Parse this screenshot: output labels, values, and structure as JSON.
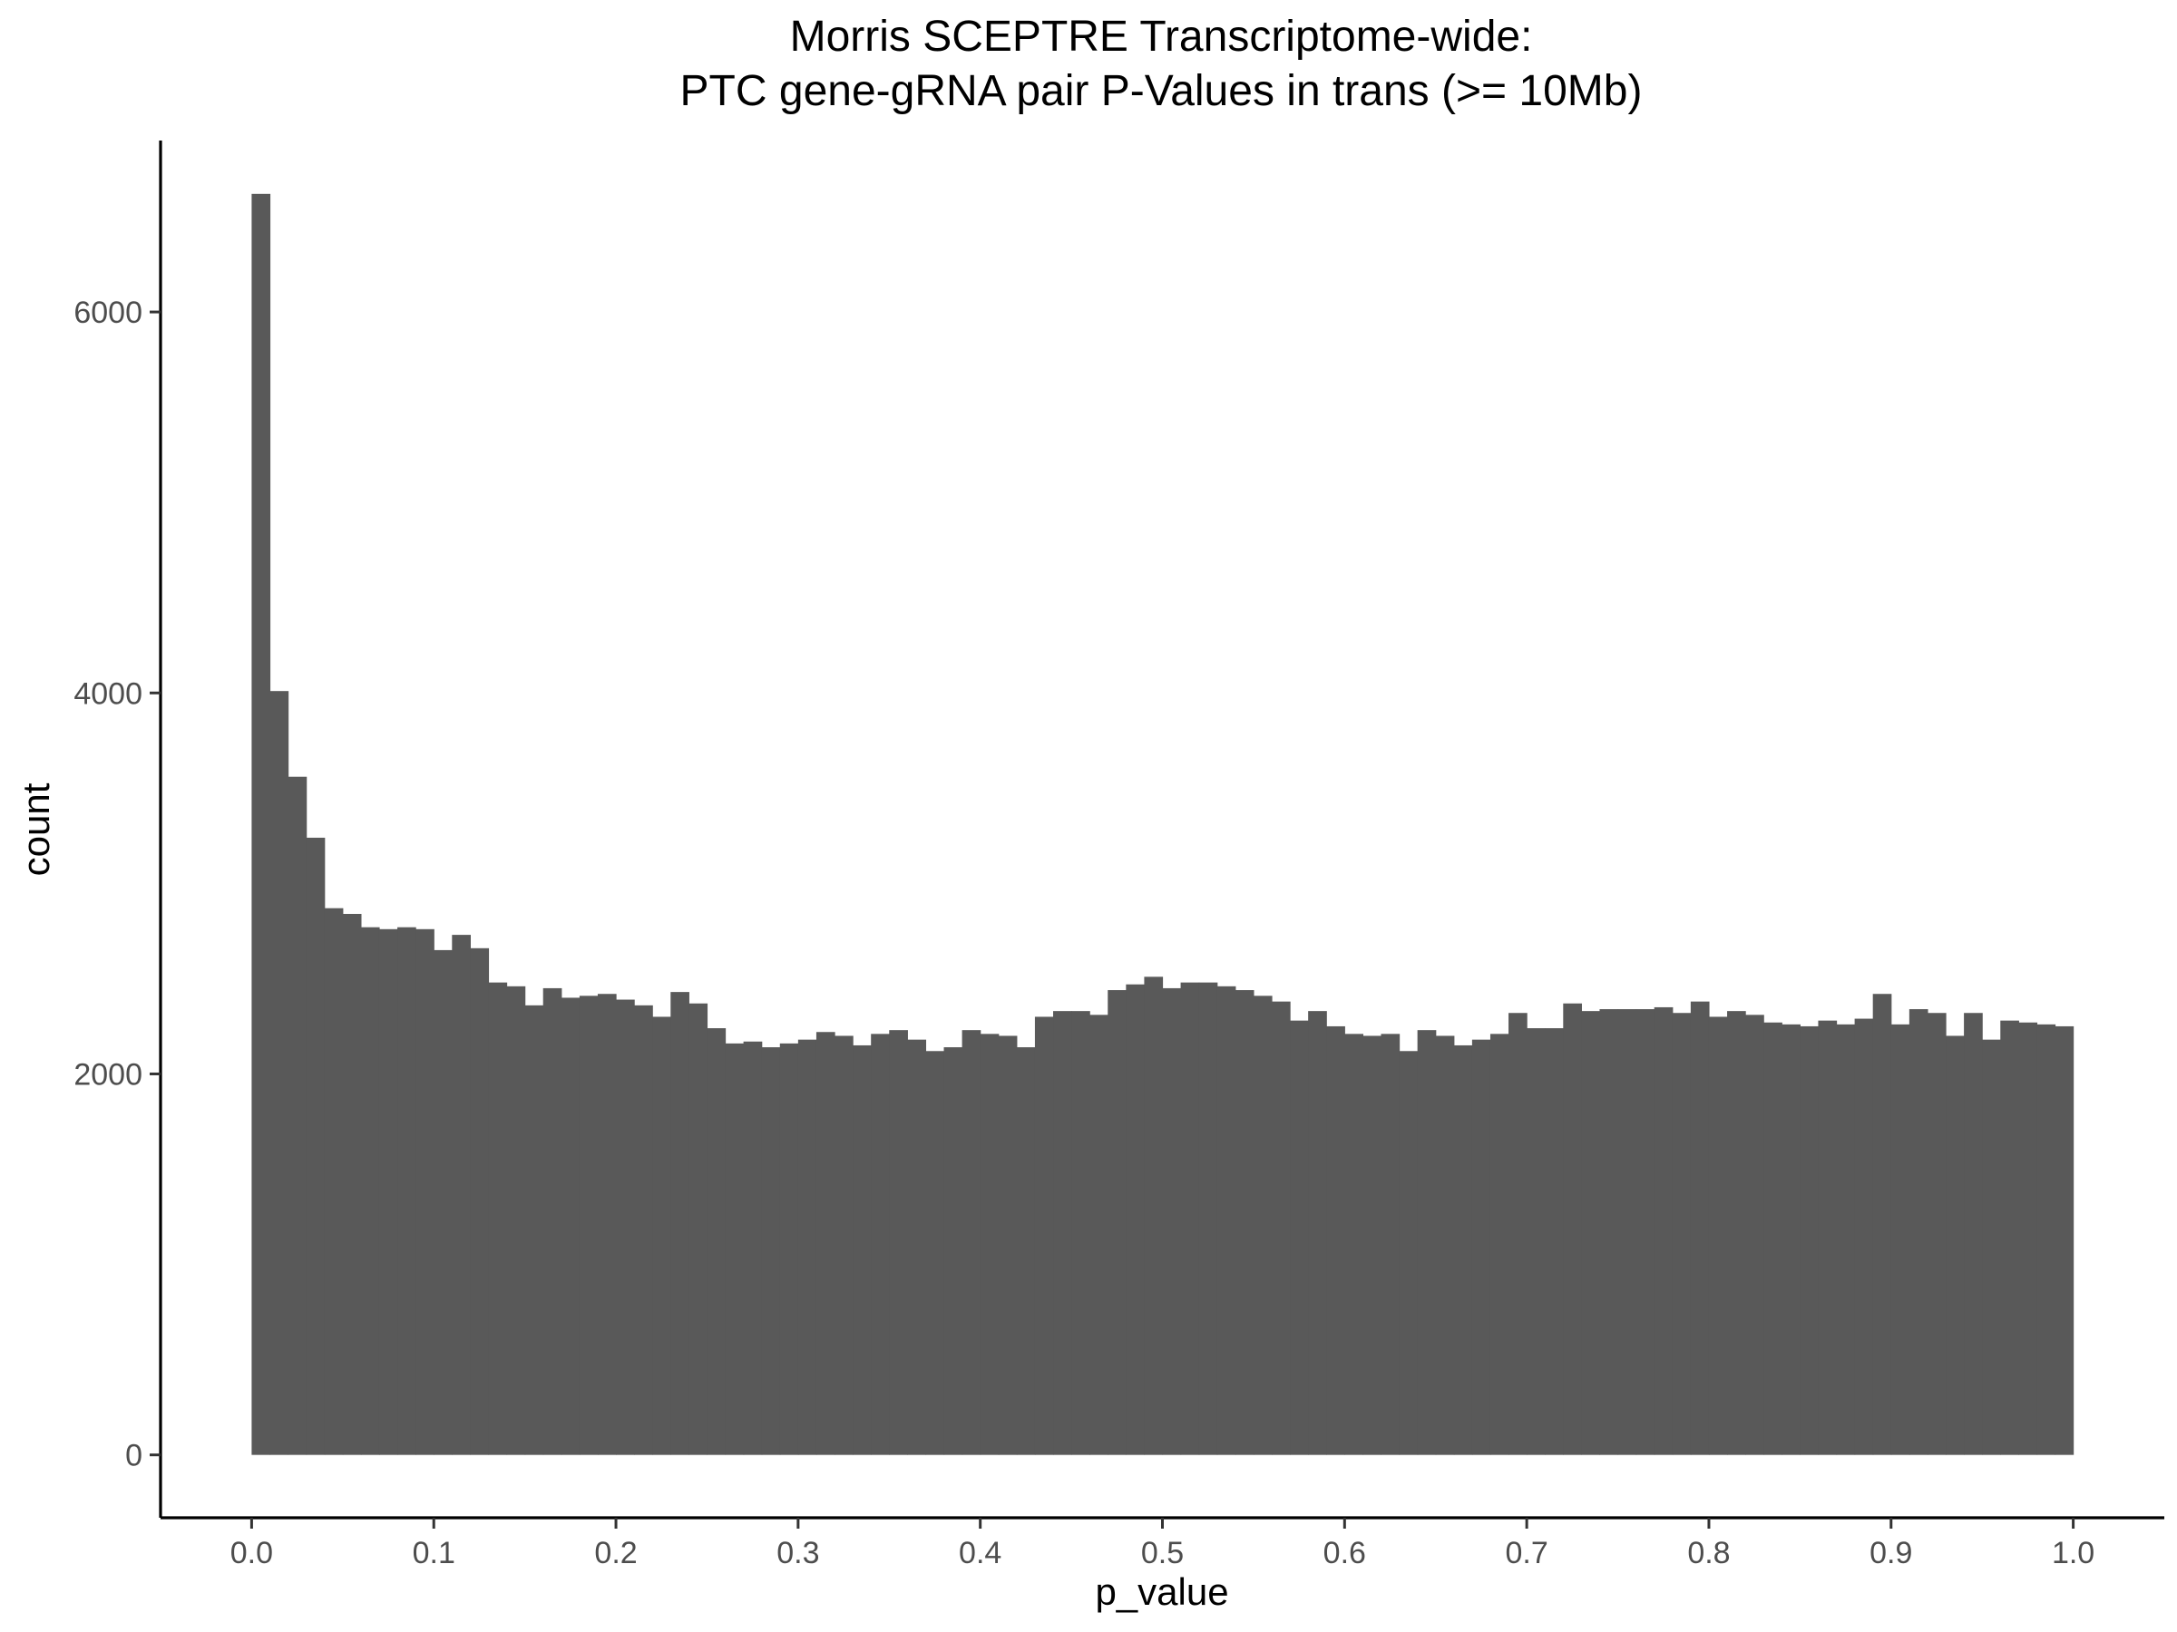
{
  "chart_data": {
    "type": "bar",
    "title_lines": [
      "Morris SCEPTRE Transcriptome-wide:",
      "PTC gene-gRNA pair P-Values in trans (>= 10Mb)"
    ],
    "xlabel": "p_value",
    "ylabel": "count",
    "xlim": [
      -0.05,
      1.05
    ],
    "ylim": [
      -330,
      6900
    ],
    "bin_start": 0.0,
    "bin_width": 0.01,
    "x_ticks": [
      {
        "value": 0.0,
        "label": "0.0"
      },
      {
        "value": 0.1,
        "label": "0.1"
      },
      {
        "value": 0.2,
        "label": "0.2"
      },
      {
        "value": 0.3,
        "label": "0.3"
      },
      {
        "value": 0.4,
        "label": "0.4"
      },
      {
        "value": 0.5,
        "label": "0.5"
      },
      {
        "value": 0.6,
        "label": "0.6"
      },
      {
        "value": 0.7,
        "label": "0.7"
      },
      {
        "value": 0.8,
        "label": "0.8"
      },
      {
        "value": 0.9,
        "label": "0.9"
      },
      {
        "value": 1.0,
        "label": "1.0"
      }
    ],
    "y_ticks": [
      {
        "value": 0,
        "label": "0"
      },
      {
        "value": 2000,
        "label": "2000"
      },
      {
        "value": 4000,
        "label": "4000"
      },
      {
        "value": 6000,
        "label": "6000"
      }
    ],
    "grid": false,
    "bar_color": "#595959",
    "values": [
      6620,
      4010,
      3560,
      3240,
      2870,
      2840,
      2770,
      2760,
      2770,
      2760,
      2650,
      2730,
      2660,
      2480,
      2460,
      2360,
      2450,
      2400,
      2410,
      2420,
      2390,
      2360,
      2300,
      2430,
      2370,
      2240,
      2160,
      2170,
      2140,
      2160,
      2180,
      2220,
      2200,
      2150,
      2210,
      2230,
      2180,
      2120,
      2140,
      2230,
      2210,
      2200,
      2140,
      2300,
      2330,
      2330,
      2310,
      2440,
      2470,
      2510,
      2450,
      2480,
      2480,
      2460,
      2440,
      2410,
      2380,
      2280,
      2330,
      2250,
      2210,
      2200,
      2210,
      2120,
      2230,
      2200,
      2150,
      2180,
      2210,
      2320,
      2240,
      2240,
      2370,
      2330,
      2340,
      2340,
      2340,
      2350,
      2320,
      2380,
      2300,
      2330,
      2310,
      2270,
      2260,
      2250,
      2280,
      2260,
      2290,
      2420,
      2260,
      2340,
      2320,
      2200,
      2320,
      2180,
      2280,
      2270,
      2260,
      2250
    ]
  }
}
